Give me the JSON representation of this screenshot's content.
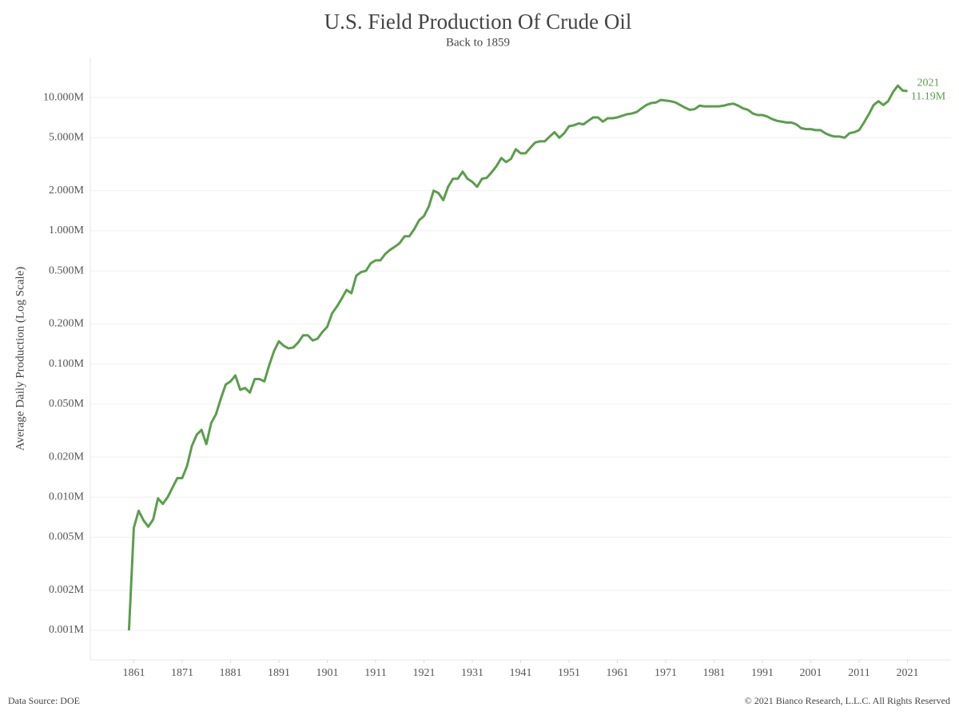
{
  "chart_data": {
    "type": "line",
    "title": "U.S. Field Production Of Crude Oil",
    "subtitle": "Back to 1859",
    "y_label": "Average Daily Production (Log Scale)",
    "source": "Data Source: DOE",
    "copyright": "© 2021 Bianco Research, L.L.C. All Rights Reserved",
    "annotation": [
      "2021",
      "11.19M"
    ],
    "color": "#5a9e4b",
    "log_y": true,
    "grid": true,
    "x": [
      1860,
      1861,
      1862,
      1863,
      1864,
      1865,
      1866,
      1867,
      1868,
      1869,
      1870,
      1871,
      1872,
      1873,
      1874,
      1875,
      1876,
      1877,
      1878,
      1879,
      1880,
      1881,
      1882,
      1883,
      1884,
      1885,
      1886,
      1887,
      1888,
      1889,
      1890,
      1891,
      1892,
      1893,
      1894,
      1895,
      1896,
      1897,
      1898,
      1899,
      1900,
      1901,
      1902,
      1903,
      1904,
      1905,
      1906,
      1907,
      1908,
      1909,
      1910,
      1911,
      1912,
      1913,
      1914,
      1915,
      1916,
      1917,
      1918,
      1919,
      1920,
      1921,
      1922,
      1923,
      1924,
      1925,
      1926,
      1927,
      1928,
      1929,
      1930,
      1931,
      1932,
      1933,
      1934,
      1935,
      1936,
      1937,
      1938,
      1939,
      1940,
      1941,
      1942,
      1943,
      1944,
      1945,
      1946,
      1947,
      1948,
      1949,
      1950,
      1951,
      1952,
      1953,
      1954,
      1955,
      1956,
      1957,
      1958,
      1959,
      1960,
      1961,
      1962,
      1963,
      1964,
      1965,
      1966,
      1967,
      1968,
      1969,
      1970,
      1971,
      1972,
      1973,
      1974,
      1975,
      1976,
      1977,
      1978,
      1979,
      1980,
      1981,
      1982,
      1983,
      1984,
      1985,
      1986,
      1987,
      1988,
      1989,
      1990,
      1991,
      1992,
      1993,
      1994,
      1995,
      1996,
      1997,
      1998,
      1999,
      2000,
      2001,
      2002,
      2003,
      2004,
      2005,
      2006,
      2007,
      2008,
      2009,
      2010,
      2011,
      2012,
      2013,
      2014,
      2015,
      2016,
      2017,
      2018,
      2019,
      2020,
      2021
    ],
    "values": [
      0.001,
      0.0059,
      0.0079,
      0.0067,
      0.006,
      0.0068,
      0.0098,
      0.0089,
      0.01,
      0.0118,
      0.0139,
      0.0139,
      0.0171,
      0.0242,
      0.0294,
      0.032,
      0.025,
      0.036,
      0.042,
      0.055,
      0.07,
      0.074,
      0.082,
      0.064,
      0.066,
      0.061,
      0.077,
      0.077,
      0.074,
      0.098,
      0.125,
      0.148,
      0.137,
      0.131,
      0.133,
      0.145,
      0.164,
      0.164,
      0.15,
      0.155,
      0.174,
      0.19,
      0.24,
      0.27,
      0.31,
      0.36,
      0.34,
      0.46,
      0.49,
      0.5,
      0.57,
      0.6,
      0.6,
      0.67,
      0.72,
      0.76,
      0.81,
      0.91,
      0.91,
      1.03,
      1.2,
      1.29,
      1.52,
      2.0,
      1.92,
      1.7,
      2.14,
      2.46,
      2.46,
      2.78,
      2.46,
      2.33,
      2.14,
      2.46,
      2.5,
      2.75,
      3.06,
      3.52,
      3.28,
      3.47,
      4.1,
      3.82,
      3.82,
      4.2,
      4.6,
      4.7,
      4.7,
      5.1,
      5.5,
      5.0,
      5.4,
      6.1,
      6.2,
      6.4,
      6.3,
      6.7,
      7.1,
      7.1,
      6.6,
      7.0,
      7.0,
      7.1,
      7.3,
      7.5,
      7.6,
      7.8,
      8.3,
      8.8,
      9.1,
      9.2,
      9.6,
      9.5,
      9.4,
      9.2,
      8.8,
      8.4,
      8.1,
      8.2,
      8.7,
      8.6,
      8.6,
      8.6,
      8.6,
      8.7,
      8.9,
      9.0,
      8.7,
      8.3,
      8.1,
      7.6,
      7.4,
      7.4,
      7.2,
      6.9,
      6.7,
      6.6,
      6.5,
      6.5,
      6.3,
      5.9,
      5.8,
      5.8,
      5.7,
      5.7,
      5.4,
      5.2,
      5.1,
      5.1,
      5.0,
      5.4,
      5.5,
      5.7,
      6.5,
      7.5,
      8.8,
      9.4,
      8.8,
      9.4,
      11.0,
      12.3,
      11.3,
      11.19
    ],
    "xlim": [
      1852,
      2030
    ],
    "xticks": [
      1861,
      1871,
      1881,
      1891,
      1901,
      1911,
      1921,
      1931,
      1941,
      1951,
      1961,
      1971,
      1981,
      1991,
      2001,
      2011,
      2021
    ],
    "ylim": [
      0.0006,
      20
    ],
    "yticks": [
      {
        "value": 0.001,
        "label": "0.001M"
      },
      {
        "value": 0.002,
        "label": "0.002M"
      },
      {
        "value": 0.005,
        "label": "0.005M"
      },
      {
        "value": 0.01,
        "label": "0.010M"
      },
      {
        "value": 0.02,
        "label": "0.020M"
      },
      {
        "value": 0.05,
        "label": "0.050M"
      },
      {
        "value": 0.1,
        "label": "0.100M"
      },
      {
        "value": 0.2,
        "label": "0.200M"
      },
      {
        "value": 0.5,
        "label": "0.500M"
      },
      {
        "value": 1,
        "label": "1.000M"
      },
      {
        "value": 2,
        "label": "2.000M"
      },
      {
        "value": 5,
        "label": "5.000M"
      },
      {
        "value": 10,
        "label": "10.000M"
      }
    ]
  }
}
